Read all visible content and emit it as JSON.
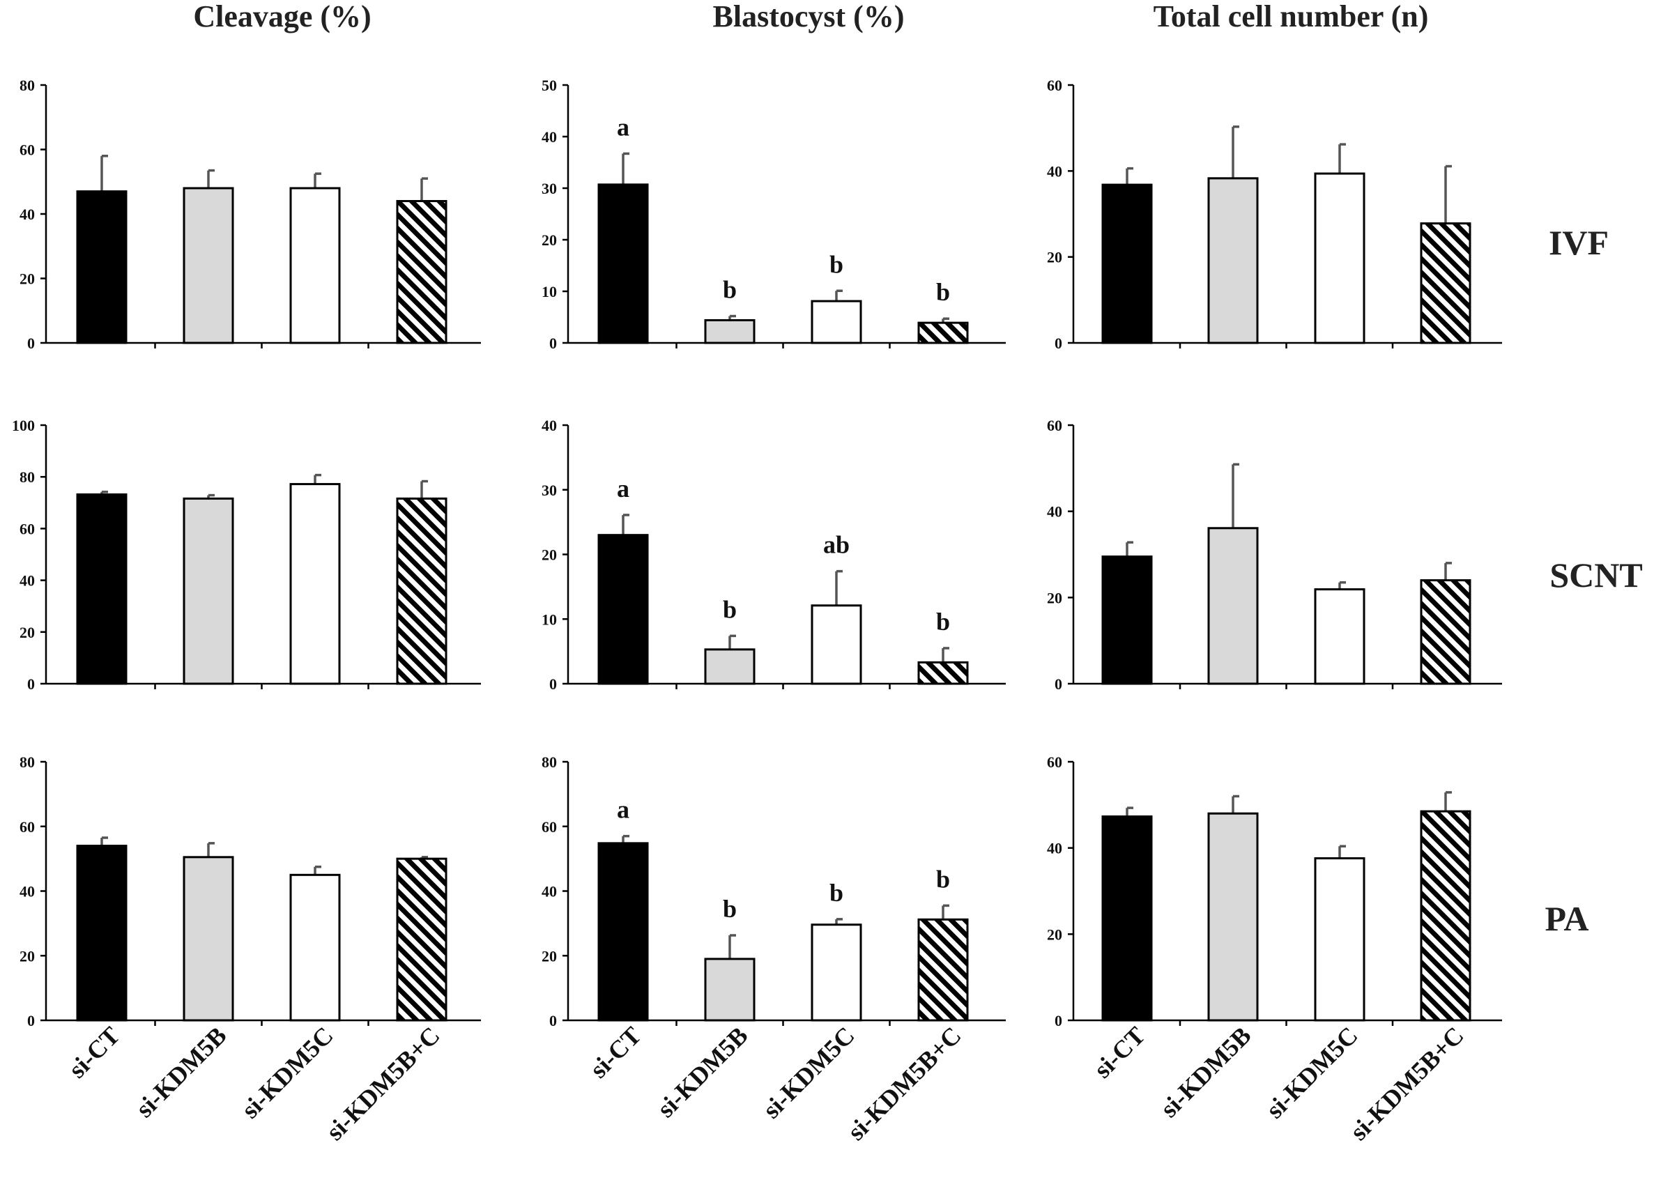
{
  "column_titles": [
    "Cleavage (%)",
    "Blastocyst (%)",
    "Total cell number (n)"
  ],
  "row_labels": [
    "IVF",
    "SCNT",
    "PA"
  ],
  "categories": [
    "si-CT",
    "si-KDM5B",
    "si-KDM5C",
    "si-KDM5B+C"
  ],
  "bar_styles": [
    {
      "name": "si-CT",
      "fill": "#000000"
    },
    {
      "name": "si-KDM5B",
      "fill": "#d9d9d9"
    },
    {
      "name": "si-KDM5C",
      "fill": "#ffffff"
    },
    {
      "name": "si-KDM5B+C",
      "fill": "hatch"
    }
  ],
  "chart_data": [
    {
      "type": "bar",
      "title": "Cleavage (%)",
      "group": "IVF",
      "ylim": [
        0,
        80
      ],
      "yticks": [
        0,
        20,
        40,
        60,
        80
      ],
      "values": [
        47,
        48,
        48,
        44
      ],
      "errors": [
        11,
        5.5,
        4.5,
        7
      ],
      "labels": [
        "",
        "",
        "",
        ""
      ]
    },
    {
      "type": "bar",
      "title": "Blastocyst (%)",
      "group": "IVF",
      "ylim": [
        0,
        50
      ],
      "yticks": [
        0,
        10,
        20,
        30,
        40,
        50
      ],
      "values": [
        30.7,
        4.4,
        8.1,
        3.9
      ],
      "errors": [
        6,
        0.8,
        2,
        0.8
      ],
      "labels": [
        "a",
        "b",
        "b",
        "b"
      ]
    },
    {
      "type": "bar",
      "title": "Total cell number (n)",
      "group": "IVF",
      "ylim": [
        0,
        60
      ],
      "yticks": [
        0,
        20,
        40,
        60
      ],
      "values": [
        36.8,
        38.3,
        39.4,
        27.8
      ],
      "errors": [
        3.8,
        12,
        6.8,
        13.3
      ],
      "labels": [
        "",
        "",
        "",
        ""
      ]
    },
    {
      "type": "bar",
      "title": "Cleavage (%)",
      "group": "SCNT",
      "ylim": [
        0,
        100
      ],
      "yticks": [
        0,
        20,
        40,
        60,
        80,
        100
      ],
      "values": [
        73.2,
        71.6,
        77.2,
        71.6
      ],
      "errors": [
        1,
        1.3,
        3.5,
        6.7
      ],
      "labels": [
        "",
        "",
        "",
        ""
      ]
    },
    {
      "type": "bar",
      "title": "Blastocyst (%)",
      "group": "SCNT",
      "ylim": [
        0,
        40
      ],
      "yticks": [
        0,
        10,
        20,
        30,
        40
      ],
      "values": [
        23,
        5.3,
        12.1,
        3.3
      ],
      "errors": [
        3.1,
        2.1,
        5.3,
        2.2
      ],
      "labels": [
        "a",
        "b",
        "ab",
        "b"
      ]
    },
    {
      "type": "bar",
      "title": "Total cell number (n)",
      "group": "SCNT",
      "ylim": [
        0,
        60
      ],
      "yticks": [
        0,
        20,
        40,
        60
      ],
      "values": [
        29.5,
        36.1,
        21.9,
        24
      ],
      "errors": [
        3.3,
        14.8,
        1.6,
        4
      ],
      "labels": [
        "",
        "",
        "",
        ""
      ]
    },
    {
      "type": "bar",
      "title": "Cleavage (%)",
      "group": "PA",
      "ylim": [
        0,
        80
      ],
      "yticks": [
        0,
        20,
        40,
        60,
        80
      ],
      "values": [
        54,
        50.5,
        45,
        50
      ],
      "errors": [
        2.5,
        4.3,
        2.5,
        0.5
      ],
      "labels": [
        "",
        "",
        "",
        ""
      ]
    },
    {
      "type": "bar",
      "title": "Blastocyst (%)",
      "group": "PA",
      "ylim": [
        0,
        80
      ],
      "yticks": [
        0,
        20,
        40,
        60,
        80
      ],
      "values": [
        54.8,
        19,
        29.6,
        31.2
      ],
      "errors": [
        2.2,
        7.3,
        1.7,
        4.3
      ],
      "labels": [
        "a",
        "b",
        "b",
        "b"
      ]
    },
    {
      "type": "bar",
      "title": "Total cell number (n)",
      "group": "PA",
      "ylim": [
        0,
        60
      ],
      "yticks": [
        0,
        20,
        40,
        60
      ],
      "values": [
        47.3,
        48,
        37.6,
        48.5
      ],
      "errors": [
        2,
        4,
        2.8,
        4.4
      ],
      "labels": [
        "",
        "",
        "",
        ""
      ]
    }
  ]
}
